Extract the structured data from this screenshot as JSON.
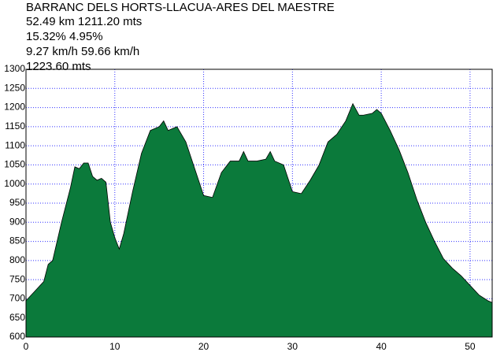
{
  "chart_data": {
    "type": "area",
    "title": "BARRANC DELS HORTS-LLACUA-ARES DEL MAESTRE",
    "annotations": [
      "52.49 km 1211.20 mts",
      "15.32% 4.95%",
      "9.27 km/h 59.66 km/h",
      "1223.60 mts"
    ],
    "x": [
      0,
      1,
      2,
      2.5,
      3,
      4,
      5,
      5.5,
      6,
      6.5,
      7,
      7.5,
      8,
      8.5,
      9,
      9.5,
      10,
      10.5,
      11,
      12,
      13,
      14,
      15,
      15.5,
      16,
      17,
      18,
      19,
      20,
      21,
      22,
      23,
      24,
      24.5,
      25,
      26,
      27,
      27.5,
      28,
      29,
      30,
      31,
      32,
      33,
      34,
      35,
      36,
      36.8,
      37.5,
      38,
      39,
      39.5,
      40,
      41,
      42,
      43,
      44,
      45,
      46,
      47,
      48,
      49,
      50,
      51,
      52,
      52.49
    ],
    "values": [
      695,
      720,
      745,
      790,
      800,
      900,
      990,
      1045,
      1040,
      1055,
      1055,
      1020,
      1010,
      1015,
      1005,
      900,
      860,
      830,
      870,
      980,
      1080,
      1140,
      1150,
      1165,
      1140,
      1150,
      1110,
      1040,
      970,
      965,
      1030,
      1060,
      1060,
      1085,
      1060,
      1060,
      1065,
      1085,
      1060,
      1050,
      980,
      975,
      1010,
      1050,
      1110,
      1130,
      1165,
      1210,
      1180,
      1180,
      1185,
      1195,
      1185,
      1140,
      1090,
      1030,
      960,
      900,
      850,
      805,
      780,
      760,
      735,
      710,
      695,
      690
    ],
    "color": "#0b7a3b",
    "xlim": [
      0,
      52.49
    ],
    "xticks": [
      0,
      10,
      20,
      30,
      40,
      50
    ],
    "ylim": [
      600,
      1300
    ],
    "yticks": [
      600,
      650,
      700,
      750,
      800,
      850,
      900,
      950,
      1000,
      1050,
      1100,
      1150,
      1200,
      1250,
      1300
    ],
    "grid": true
  }
}
